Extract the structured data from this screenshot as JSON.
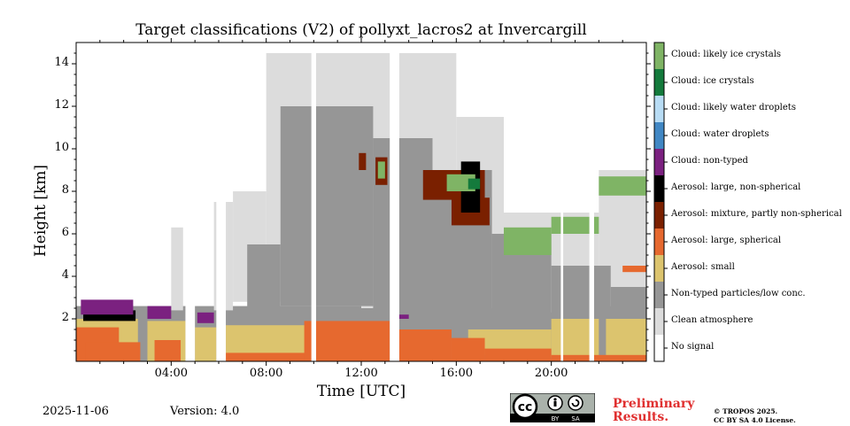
{
  "chart_data": {
    "type": "heatmap",
    "title": "Target classifications (V2) of pollyxt_lacros2 at Invercargill",
    "xlabel": "Time [UTC]",
    "ylabel": "Height [km]",
    "xlim": [
      0,
      24
    ],
    "ylim": [
      0,
      15
    ],
    "x_ticks": [
      {
        "value": 4,
        "label": "04:00"
      },
      {
        "value": 8,
        "label": "08:00"
      },
      {
        "value": 12,
        "label": "12:00"
      },
      {
        "value": 16,
        "label": "16:00"
      },
      {
        "value": 20,
        "label": "20:00"
      }
    ],
    "y_ticks": [
      {
        "value": 2,
        "label": "2"
      },
      {
        "value": 4,
        "label": "4"
      },
      {
        "value": 6,
        "label": "6"
      },
      {
        "value": 8,
        "label": "8"
      },
      {
        "value": 10,
        "label": "10"
      },
      {
        "value": 12,
        "label": "12"
      },
      {
        "value": 14,
        "label": "14"
      }
    ],
    "classes": [
      {
        "label": "No signal",
        "color": "#ffffff"
      },
      {
        "label": "Clean atmosphere",
        "color": "#dcdcdc"
      },
      {
        "label": "Non-typed particles/low conc.",
        "color": "#969696"
      },
      {
        "label": "Aerosol: small",
        "color": "#dcc46e"
      },
      {
        "label": "Aerosol: large, spherical",
        "color": "#e6692f"
      },
      {
        "label": "Aerosol: mixture, partly non-spherical",
        "color": "#7a2000"
      },
      {
        "label": "Aerosol: large, non-spherical",
        "color": "#000000"
      },
      {
        "label": "Cloud: non-typed",
        "color": "#7b2180"
      },
      {
        "label": "Cloud: water droplets",
        "color": "#4187c4"
      },
      {
        "label": "Cloud: likely water droplets",
        "color": "#b8dcf4"
      },
      {
        "label": "Cloud: ice crystals",
        "color": "#147a3c"
      },
      {
        "label": "Cloud: likely ice crystals",
        "color": "#7fb465"
      }
    ],
    "regions": [
      {
        "cls": 2,
        "t": [
          0,
          24
        ],
        "h": [
          0,
          2.6
        ]
      },
      {
        "cls": 1,
        "t": [
          4,
          4.5
        ],
        "h": [
          2.4,
          6.3
        ]
      },
      {
        "cls": 1,
        "t": [
          5.8,
          6.6
        ],
        "h": [
          2.4,
          7.5
        ]
      },
      {
        "cls": 1,
        "t": [
          6.6,
          8
        ],
        "h": [
          2.8,
          8.0
        ]
      },
      {
        "cls": 1,
        "t": [
          8,
          12
        ],
        "h": [
          2.8,
          14.5
        ]
      },
      {
        "cls": 1,
        "t": [
          12,
          16
        ],
        "h": [
          2.5,
          14.5
        ]
      },
      {
        "cls": 1,
        "t": [
          16,
          18
        ],
        "h": [
          2.5,
          11.5
        ]
      },
      {
        "cls": 1,
        "t": [
          18,
          22
        ],
        "h": [
          2.3,
          7.0
        ]
      },
      {
        "cls": 1,
        "t": [
          22,
          24
        ],
        "h": [
          2.6,
          9.0
        ]
      },
      {
        "cls": 2,
        "t": [
          7.2,
          8.6
        ],
        "h": [
          2.4,
          5.5
        ]
      },
      {
        "cls": 2,
        "t": [
          8.6,
          12.5
        ],
        "h": [
          2.6,
          12.0
        ]
      },
      {
        "cls": 2,
        "t": [
          12.5,
          15
        ],
        "h": [
          2.4,
          10.5
        ]
      },
      {
        "cls": 2,
        "t": [
          15,
          17.5
        ],
        "h": [
          2.2,
          9.0
        ]
      },
      {
        "cls": 2,
        "t": [
          17.5,
          20
        ],
        "h": [
          2.0,
          6.0
        ]
      },
      {
        "cls": 2,
        "t": [
          20,
          22.5
        ],
        "h": [
          2.0,
          4.5
        ]
      },
      {
        "cls": 2,
        "t": [
          22.5,
          24
        ],
        "h": [
          2.2,
          3.5
        ]
      },
      {
        "cls": 3,
        "t": [
          0,
          2.6
        ],
        "h": [
          0,
          2.0
        ]
      },
      {
        "cls": 3,
        "t": [
          3,
          4.6
        ],
        "h": [
          0,
          1.9
        ]
      },
      {
        "cls": 3,
        "t": [
          5.0,
          5.9
        ],
        "h": [
          0,
          1.6
        ]
      },
      {
        "cls": 3,
        "t": [
          6.3,
          9.8
        ],
        "h": [
          0,
          1.7
        ]
      },
      {
        "cls": 3,
        "t": [
          16.5,
          20
        ],
        "h": [
          0.3,
          1.5
        ]
      },
      {
        "cls": 3,
        "t": [
          20,
          22
        ],
        "h": [
          0.2,
          2.0
        ]
      },
      {
        "cls": 3,
        "t": [
          22.3,
          24
        ],
        "h": [
          0.2,
          2.0
        ]
      },
      {
        "cls": 4,
        "t": [
          0,
          1.8
        ],
        "h": [
          0,
          1.6
        ]
      },
      {
        "cls": 4,
        "t": [
          0.4,
          2.7
        ],
        "h": [
          0,
          0.9
        ]
      },
      {
        "cls": 4,
        "t": [
          3.3,
          4.4
        ],
        "h": [
          0,
          1.0
        ]
      },
      {
        "cls": 4,
        "t": [
          6.3,
          9.8
        ],
        "h": [
          0,
          0.4
        ]
      },
      {
        "cls": 4,
        "t": [
          9.6,
          13.2
        ],
        "h": [
          0,
          1.9
        ]
      },
      {
        "cls": 4,
        "t": [
          13.2,
          15.8
        ],
        "h": [
          0,
          1.5
        ]
      },
      {
        "cls": 4,
        "t": [
          15.8,
          17.2
        ],
        "h": [
          0,
          1.1
        ]
      },
      {
        "cls": 4,
        "t": [
          17.2,
          20
        ],
        "h": [
          0,
          0.6
        ]
      },
      {
        "cls": 4,
        "t": [
          20,
          24
        ],
        "h": [
          0,
          0.3
        ]
      },
      {
        "cls": 4,
        "t": [
          23.0,
          24
        ],
        "h": [
          4.2,
          4.5
        ]
      },
      {
        "cls": 6,
        "t": [
          0.3,
          2.5
        ],
        "h": [
          1.9,
          2.4
        ]
      },
      {
        "cls": 7,
        "t": [
          0.2,
          2.4
        ],
        "h": [
          2.2,
          2.9
        ]
      },
      {
        "cls": 7,
        "t": [
          3.0,
          4.0
        ],
        "h": [
          2.0,
          2.6
        ]
      },
      {
        "cls": 7,
        "t": [
          5.1,
          5.8
        ],
        "h": [
          1.8,
          2.3
        ]
      },
      {
        "cls": 7,
        "t": [
          13.4,
          14.0
        ],
        "h": [
          2.0,
          2.2
        ]
      },
      {
        "cls": 5,
        "t": [
          11.9,
          12.2
        ],
        "h": [
          9.0,
          9.8
        ]
      },
      {
        "cls": 5,
        "t": [
          12.6,
          13.1
        ],
        "h": [
          8.3,
          9.6
        ]
      },
      {
        "cls": 5,
        "t": [
          14.6,
          17.2
        ],
        "h": [
          7.6,
          9.0
        ]
      },
      {
        "cls": 5,
        "t": [
          15.8,
          17.4
        ],
        "h": [
          6.4,
          7.7
        ]
      },
      {
        "cls": 6,
        "t": [
          16.2,
          17.0
        ],
        "h": [
          7.0,
          9.4
        ]
      },
      {
        "cls": 11,
        "t": [
          12.7,
          13.0
        ],
        "h": [
          8.6,
          9.4
        ]
      },
      {
        "cls": 11,
        "t": [
          15.6,
          16.8
        ],
        "h": [
          8.0,
          8.8
        ]
      },
      {
        "cls": 10,
        "t": [
          16.5,
          17.0
        ],
        "h": [
          8.1,
          8.6
        ]
      },
      {
        "cls": 11,
        "t": [
          18.0,
          20.0
        ],
        "h": [
          5.0,
          6.3
        ]
      },
      {
        "cls": 11,
        "t": [
          20.0,
          22.0
        ],
        "h": [
          6.0,
          6.8
        ]
      },
      {
        "cls": 11,
        "t": [
          22.0,
          24.0
        ],
        "h": [
          7.8,
          8.7
        ]
      }
    ],
    "gaps": [
      {
        "t": [
          4.6,
          5.0
        ]
      },
      {
        "t": [
          5.9,
          6.3
        ]
      },
      {
        "t": [
          9.9,
          10.1
        ]
      },
      {
        "t": [
          13.2,
          13.6
        ]
      },
      {
        "t": [
          20.4,
          20.5
        ]
      },
      {
        "t": [
          21.6,
          21.8
        ]
      }
    ]
  },
  "footer": {
    "date": "2025-11-06",
    "version": "Version: 4.0",
    "preliminary": "Preliminary Results.",
    "copyright_line1": "© TROPOS 2025.",
    "copyright_line2": "CC BY SA 4.0 License.",
    "cc_badge_text": "cc",
    "by_text": "BY",
    "sa_text": "SA"
  }
}
